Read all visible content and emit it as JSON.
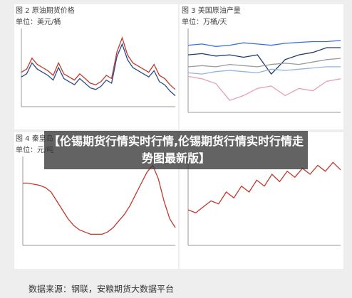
{
  "chart_data": [
    {
      "type": "line",
      "title": "图 2  原油期货价格",
      "unit": "单位：美元/桶",
      "ylim": [
        30,
        130
      ],
      "series": [
        {
          "color": "#c0392b",
          "values": [
            74,
            78,
            92,
            84,
            80,
            76,
            70,
            86,
            72,
            68,
            64,
            72,
            66,
            60,
            58,
            62,
            70,
            66,
            100,
            118,
            96,
            86,
            82,
            78,
            74,
            84,
            70,
            66,
            58,
            52
          ]
        },
        {
          "color": "#2c4a8a",
          "values": [
            68,
            72,
            86,
            78,
            74,
            70,
            64,
            80,
            66,
            62,
            58,
            66,
            60,
            54,
            52,
            56,
            64,
            60,
            94,
            110,
            90,
            80,
            76,
            72,
            68,
            76,
            62,
            58,
            50,
            44
          ]
        }
      ]
    },
    {
      "type": "line",
      "title": "图 3  美国原油产量",
      "unit": "单位：万桶/天",
      "ylim": [
        1050,
        1400
      ],
      "series": [
        {
          "color": "#3a6fd8",
          "values": [
            1330,
            1335,
            1325,
            1330,
            1340,
            1335,
            1330,
            1338,
            1342,
            1345,
            1345,
            1350
          ]
        },
        {
          "color": "#1f3a6e",
          "values": [
            1290,
            1295,
            1285,
            1290,
            1280,
            1290,
            1210,
            1270,
            1290,
            1300,
            1320,
            1320
          ]
        },
        {
          "color": "#9a9a9a",
          "values": [
            1240,
            1245,
            1240,
            1250,
            1245,
            1240,
            1250,
            1255,
            1250,
            1260,
            1270,
            1275
          ]
        },
        {
          "color": "#8fb3e8",
          "values": [
            1215,
            1210,
            1220,
            1225,
            1220,
            1215,
            1230,
            1225,
            1230,
            1235,
            1240,
            1240
          ]
        },
        {
          "color": "#e8a0b0",
          "values": [
            1200,
            1190,
            1170,
            1100,
            1120,
            1150,
            1160,
            1120,
            1150,
            1140,
            1180,
            1190
          ]
        }
      ]
    },
    {
      "type": "line",
      "title": "图 4  秦皇岛",
      "unit": "单位：元/吨",
      "ylim": [
        600,
        1000
      ],
      "series": [
        {
          "color": "#c0392b",
          "values": [
            880,
            880,
            875,
            870,
            860,
            840,
            800,
            760,
            720,
            690,
            670,
            660,
            650,
            650,
            650,
            660,
            680,
            710,
            740,
            780,
            830,
            880,
            930,
            960,
            900,
            800,
            720,
            680
          ]
        }
      ]
    },
    {
      "type": "line",
      "ylim": [
        400,
        1000
      ],
      "series": [
        {
          "color": "#c0392b",
          "values": [
            640,
            620,
            660,
            700,
            680,
            760,
            720,
            800,
            760,
            840,
            800,
            880,
            830,
            900,
            860,
            920,
            880,
            940,
            900,
            960,
            910
          ]
        }
      ]
    }
  ],
  "overlay": "【伦锡期货行情实时行情,伦锡期货行情实时行情走势图最新版】",
  "source": "数据来源：钢联，安粮期货大数据平台"
}
